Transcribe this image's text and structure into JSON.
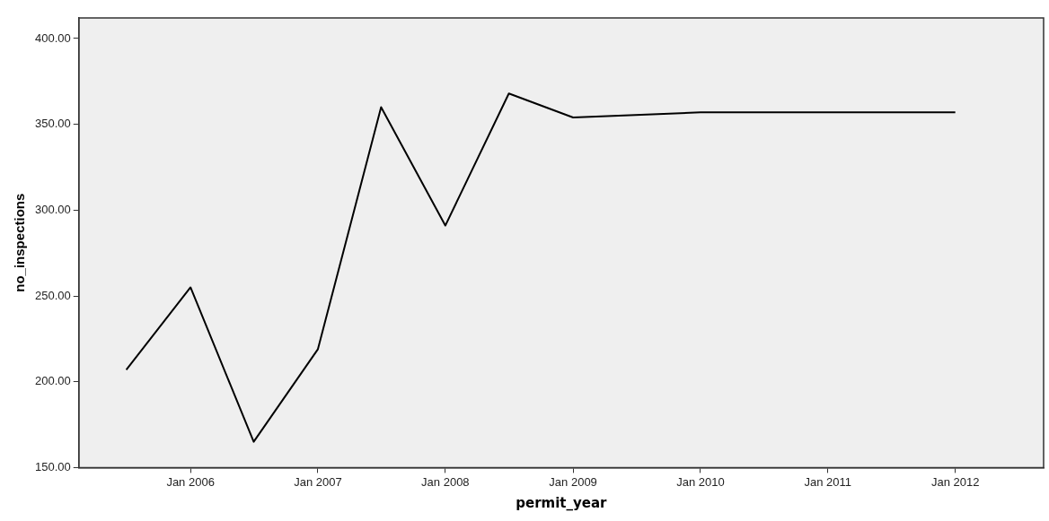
{
  "chart_data": {
    "type": "line",
    "xlabel": "permit_year",
    "ylabel": "no_inspections",
    "x": [
      "2005-07-01",
      "2006-01-01",
      "2006-07-01",
      "2007-01-01",
      "2007-07-01",
      "2008-01-01",
      "2008-07-01",
      "2009-01-01",
      "2010-01-01",
      "2011-01-01",
      "2012-01-01"
    ],
    "series": [
      {
        "color": "#000000",
        "values": [
          207,
          255,
          165,
          219,
          360,
          291,
          368,
          354,
          357,
          357,
          357
        ]
      }
    ],
    "xlim": [
      "2005-02-15",
      "2012-09-10"
    ],
    "xticks": [
      {
        "value": "2006-01-01",
        "label": "Jan 2006"
      },
      {
        "value": "2007-01-01",
        "label": "Jan 2007"
      },
      {
        "value": "2008-01-01",
        "label": "Jan 2008"
      },
      {
        "value": "2009-01-01",
        "label": "Jan 2009"
      },
      {
        "value": "2010-01-01",
        "label": "Jan 2010"
      },
      {
        "value": "2011-01-01",
        "label": "Jan 2011"
      },
      {
        "value": "2012-01-01",
        "label": "Jan 2012"
      }
    ],
    "ylim": [
      150,
      412
    ],
    "yticks": [
      {
        "value": 150,
        "label": "150.00"
      },
      {
        "value": 200,
        "label": "200.00"
      },
      {
        "value": 250,
        "label": "250.00"
      },
      {
        "value": 300,
        "label": "300.00"
      },
      {
        "value": 350,
        "label": "350.00"
      },
      {
        "value": 400,
        "label": "400.00"
      }
    ],
    "grid": false,
    "legend": false,
    "marker": "none",
    "line_style": "solid"
  }
}
